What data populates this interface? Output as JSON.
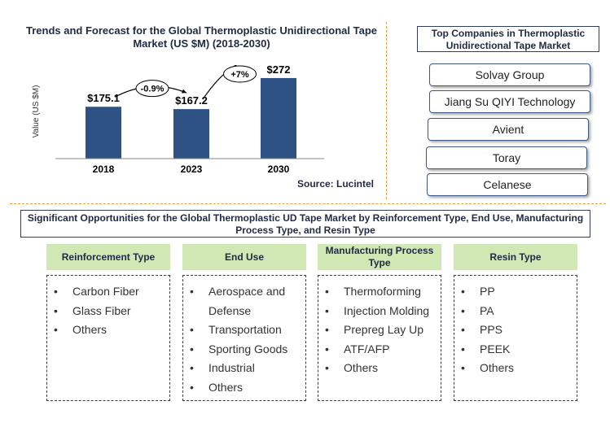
{
  "chart_data": {
    "type": "bar",
    "title": "Trends and Forecast for the Global Thermoplastic Unidirectional Tape Market (US $M) (2018-2030)",
    "ylabel": "Value (US $M)",
    "xlabel": "",
    "categories": [
      "2018",
      "2023",
      "2030"
    ],
    "values": [
      175.1,
      167.2,
      272
    ],
    "data_labels": [
      "$175.1",
      "$167.2",
      "$272"
    ],
    "growth_annotations": [
      "-0.9%",
      "+7%"
    ],
    "ylim": [
      0,
      300
    ],
    "bar_color": "#2e5284",
    "grid": false,
    "source": "Source: Lucintel"
  },
  "companies": {
    "title": "Top Companies in Thermoplastic Unidirectional Tape Market",
    "items": [
      "Solvay Group",
      "Jiang Su QIYI Technology",
      "Avient",
      "Toray",
      "Celanese"
    ]
  },
  "opportunities": {
    "title": "Significant Opportunities for the Global Thermoplastic UD Tape Market by Reinforcement Type, End Use, Manufacturing Process Type, and Resin Type",
    "columns": [
      {
        "header": "Reinforcement Type",
        "items": [
          "Carbon Fiber",
          "Glass Fiber",
          "Others"
        ]
      },
      {
        "header": "End Use",
        "items": [
          "Aerospace and Defense",
          "Transportation",
          "Sporting Goods",
          "Industrial",
          "Others"
        ]
      },
      {
        "header": "Manufacturing Process Type",
        "items": [
          "Thermoforming",
          "Injection Molding",
          "Prepreg Lay Up",
          "ATF/AFP",
          "Others"
        ]
      },
      {
        "header": "Resin Type",
        "items": [
          "PP",
          "PA",
          "PPS",
          "PEEK",
          "Others"
        ]
      }
    ]
  },
  "colors": {
    "accent_divider": "#e8a13a",
    "header_fill": "#cfe8b4",
    "dark_navy": "#1f2a44"
  }
}
